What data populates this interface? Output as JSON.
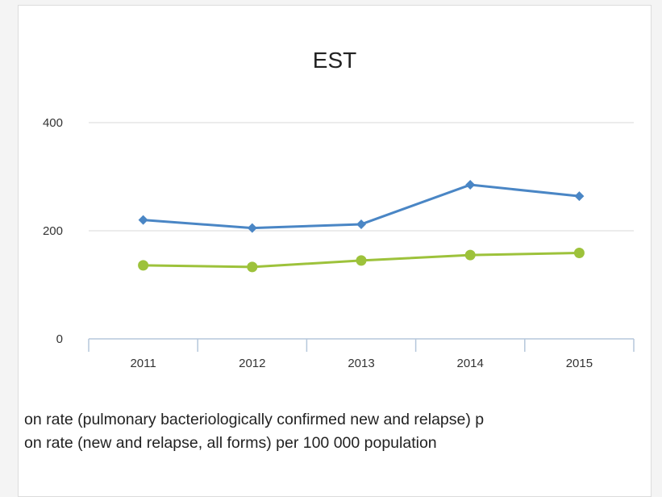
{
  "chart_data": {
    "type": "line",
    "title": "EST",
    "categories": [
      "2011",
      "2012",
      "2013",
      "2014",
      "2015"
    ],
    "ylim": [
      0,
      400
    ],
    "yticks": [
      0,
      200,
      400
    ],
    "grid": true,
    "series": [
      {
        "name": "on rate (pulmonary bacteriologically confirmed new and relapse) p",
        "color": "#4a86c5",
        "marker": "diamond",
        "values": [
          220,
          205,
          212,
          285,
          264
        ]
      },
      {
        "name": "on rate (new and relapse, all forms) per 100 000 population",
        "color": "#9dc23b",
        "marker": "circle",
        "values": [
          136,
          133,
          145,
          155,
          159
        ]
      }
    ]
  }
}
